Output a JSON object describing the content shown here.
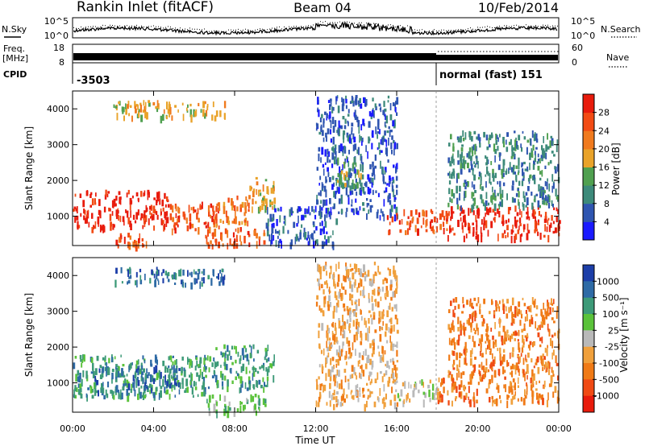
{
  "header": {
    "station": "Rankin Inlet (fitACF)",
    "beam": "Beam 04",
    "date": "10/Feb/2014"
  },
  "summary_panels": {
    "noise": {
      "left_label": "N.Sky",
      "right_label": "N.Search",
      "left_ticks": [
        "10^5",
        "10^0"
      ],
      "right_ticks": [
        "10^5",
        "10^0"
      ]
    },
    "frequency": {
      "left_label_lines": [
        "Freq.",
        "[MHz]"
      ],
      "right_label": "Nave",
      "left_ticks": [
        "18",
        "8"
      ],
      "right_ticks": [
        "60",
        "0"
      ]
    },
    "cpid": {
      "label": "CPID",
      "segments": [
        {
          "text": "-3503",
          "start_hour": 0
        },
        {
          "text": "normal (fast) 151",
          "start_hour": 18
        }
      ]
    }
  },
  "chart_data": [
    {
      "type": "heatmap",
      "name": "power",
      "ylabel": "Slant Range [km]",
      "xlabel": "",
      "x_range_hours": [
        0,
        24
      ],
      "ylim": [
        180,
        4500
      ],
      "y_ticks": [
        1000,
        2000,
        3000,
        4000
      ],
      "colorbar": {
        "label": "Power [dB]",
        "tick_labels": [
          "4",
          "8",
          "12",
          "16",
          "20",
          "24",
          "28"
        ],
        "colors": [
          "#1a1aff",
          "#2f55b0",
          "#3d8a7a",
          "#50a050",
          "#e9a32a",
          "#f07a1e",
          "#f24b14",
          "#e81b0c"
        ]
      },
      "regions": [
        {
          "t": [
            0.0,
            4.8
          ],
          "r": [
            700,
            1750
          ],
          "level": 7
        },
        {
          "t": [
            4.8,
            7.2
          ],
          "r": [
            650,
            1450
          ],
          "level": 6
        },
        {
          "t": [
            7.0,
            8.7
          ],
          "r": [
            850,
            1600
          ],
          "level": 5
        },
        {
          "t": [
            8.7,
            10.0
          ],
          "r": [
            1200,
            2100
          ],
          "level": 4
        },
        {
          "t": [
            6.5,
            9.5
          ],
          "r": [
            200,
            700
          ],
          "level": 6
        },
        {
          "t": [
            2.0,
            3.8
          ],
          "r": [
            200,
            550
          ],
          "level": 6
        },
        {
          "t": [
            2.0,
            7.5
          ],
          "r": [
            3800,
            4250
          ],
          "level": 4
        },
        {
          "t": [
            9.5,
            13.0
          ],
          "r": [
            250,
            1300
          ],
          "level": 1
        },
        {
          "t": [
            12.0,
            16.0
          ],
          "r": [
            1000,
            4400
          ],
          "level": 1
        },
        {
          "t": [
            13.0,
            14.2
          ],
          "r": [
            1900,
            2700
          ],
          "level": 3
        },
        {
          "t": [
            15.5,
            18.5
          ],
          "r": [
            600,
            1200
          ],
          "level": 6
        },
        {
          "t": [
            18.5,
            24.0
          ],
          "r": [
            450,
            1300
          ],
          "level": 7
        },
        {
          "t": [
            18.5,
            24.0
          ],
          "r": [
            1300,
            3400
          ],
          "level": 2
        }
      ]
    },
    {
      "type": "heatmap",
      "name": "velocity",
      "ylabel": "Slant Range [km]",
      "xlabel": "Time UT",
      "x_range_hours": [
        0,
        24
      ],
      "x_ticks": [
        "00:00",
        "04:00",
        "08:00",
        "12:00",
        "16:00",
        "20:00",
        "00:00"
      ],
      "ylim": [
        180,
        4500
      ],
      "y_ticks": [
        1000,
        2000,
        3000,
        4000
      ],
      "colorbar": {
        "label": "Velocity [m s⁻¹]",
        "tick_labels": [
          "1000",
          "500",
          "100",
          "25",
          "-25",
          "-100",
          "-500",
          "-1000"
        ],
        "colors": [
          "#1c3ea8",
          "#2e6aa5",
          "#3d9a78",
          "#5ac23a",
          "#b9b9b9",
          "#f0a03c",
          "#f07a16",
          "#f04a14",
          "#e81b0c"
        ]
      },
      "regions": [
        {
          "t": [
            0.0,
            7.0
          ],
          "r": [
            650,
            1800
          ],
          "level": 2
        },
        {
          "t": [
            1.0,
            5.5
          ],
          "r": [
            800,
            1500
          ],
          "level": 1
        },
        {
          "t": [
            7.0,
            10.0
          ],
          "r": [
            850,
            2100
          ],
          "level": 2
        },
        {
          "t": [
            6.5,
            9.5
          ],
          "r": [
            200,
            700
          ],
          "level": 3
        },
        {
          "t": [
            2.0,
            7.5
          ],
          "r": [
            3800,
            4250
          ],
          "level": 1
        },
        {
          "t": [
            12.0,
            16.0
          ],
          "r": [
            400,
            4400
          ],
          "level": 5
        },
        {
          "t": [
            16.0,
            18.0
          ],
          "r": [
            500,
            1100
          ],
          "level": 4
        },
        {
          "t": [
            18.0,
            24.0
          ],
          "r": [
            500,
            1300
          ],
          "level": 6
        },
        {
          "t": [
            18.5,
            24.0
          ],
          "r": [
            1300,
            3400
          ],
          "level": 6
        }
      ]
    }
  ]
}
